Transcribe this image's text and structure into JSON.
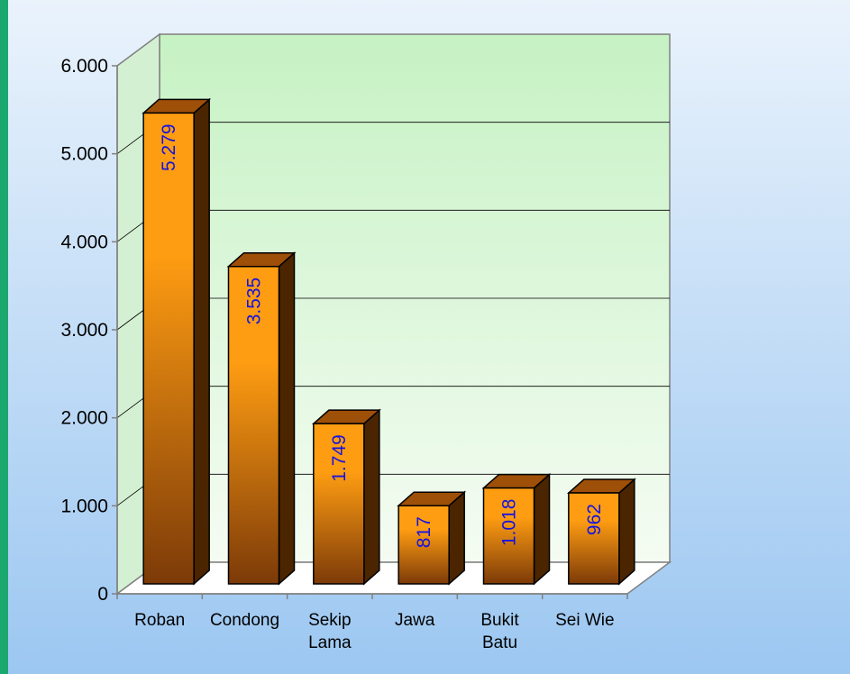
{
  "chart_data": {
    "type": "bar",
    "title": "",
    "xlabel": "",
    "ylabel": "",
    "categories": [
      [
        "Roban"
      ],
      [
        "Condong"
      ],
      [
        "Sekip",
        "Lama"
      ],
      [
        "Jawa"
      ],
      [
        "Bukit",
        "Batu"
      ],
      [
        "Sei Wie"
      ]
    ],
    "values": [
      5279,
      3535,
      1749,
      817,
      1018,
      962
    ],
    "value_labels": [
      "5.279",
      "3.535",
      "1.749",
      "817",
      "1.018",
      "962"
    ],
    "ylim": [
      0,
      6000
    ],
    "yticks": [
      0,
      1000,
      2000,
      3000,
      4000,
      5000,
      6000
    ],
    "ytick_labels": [
      "0",
      "1.000",
      "2.000",
      "3.000",
      "4.000",
      "5.000",
      "6.000"
    ],
    "grid": true,
    "legend": "none",
    "three_d": true
  },
  "colors": {
    "frame_border": "#1aa86e",
    "outer_bg_top": "#eaf3fc",
    "outer_bg_bottom": "#9cc7f1",
    "wall_top": "#c6f2c4",
    "wall_bottom": "#f5fcf3",
    "bar_front_top": "#ff9d12",
    "bar_front_bottom": "#7c3a08",
    "bar_side": "#4a2500",
    "bar_top": "#9e4f08",
    "value_label": "#1414e0",
    "axis": "#808080",
    "grid": "#000000"
  }
}
